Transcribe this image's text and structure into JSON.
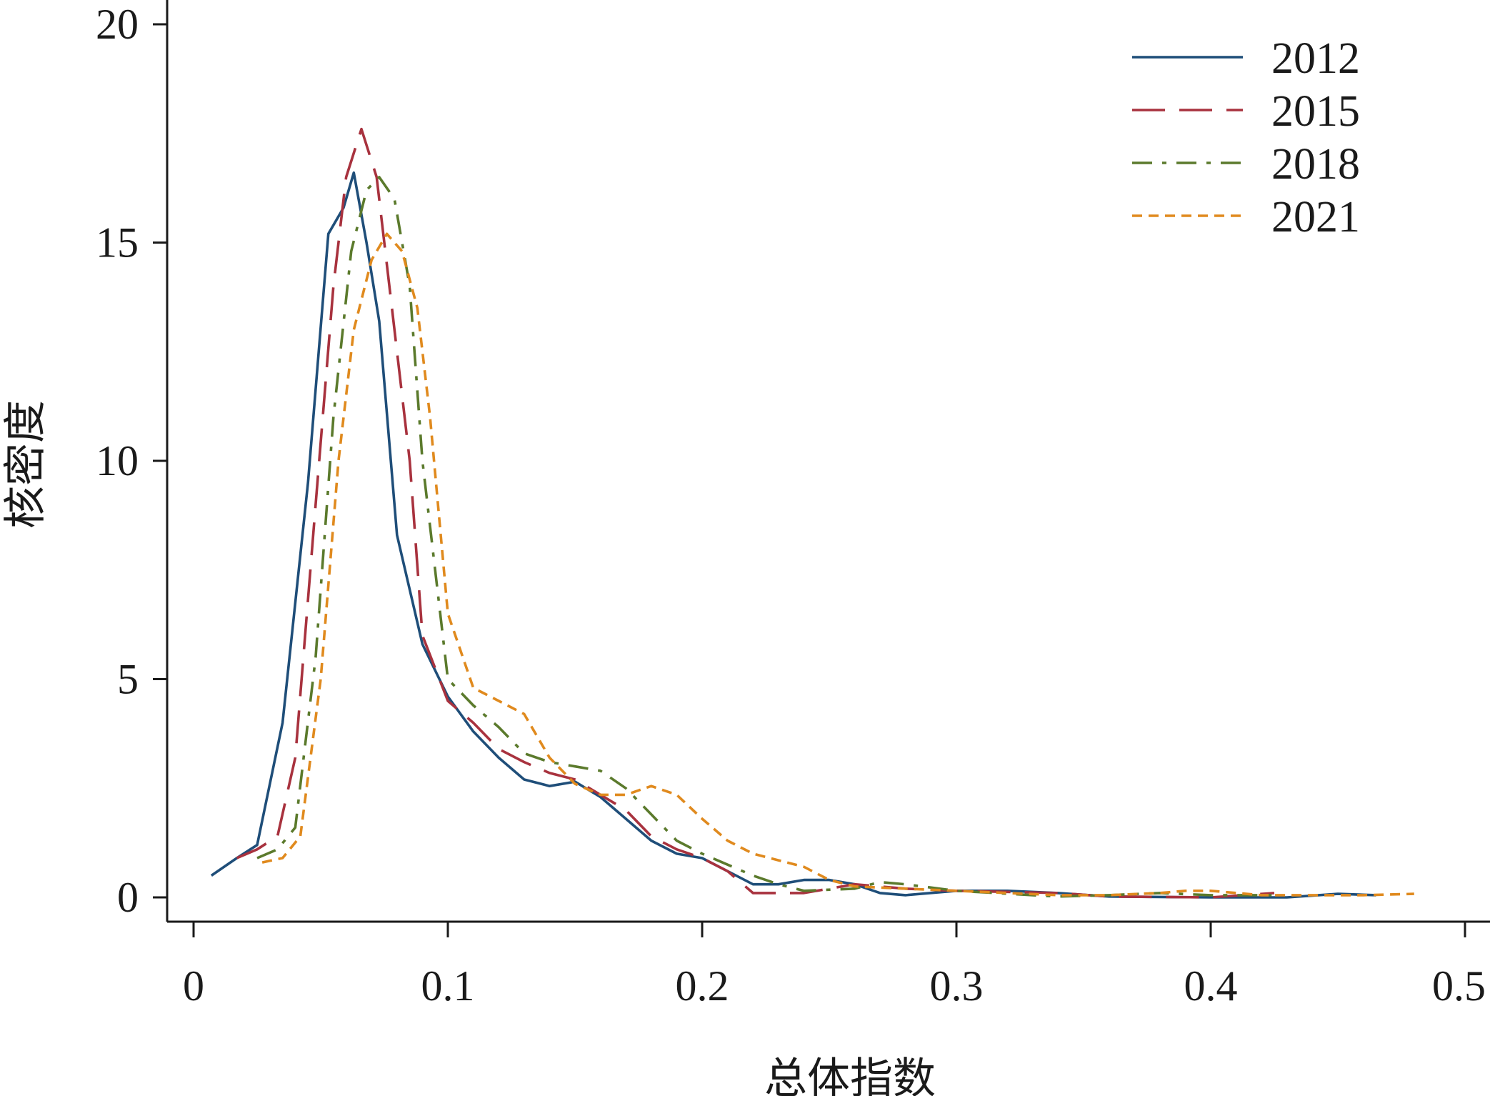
{
  "chart_data": {
    "type": "line",
    "title": "",
    "xlabel": "总体指数",
    "ylabel": "核密度",
    "xlim": [
      0,
      0.5
    ],
    "ylim": [
      0,
      20
    ],
    "x_ticks": [
      0,
      0.1,
      0.2,
      0.3,
      0.4,
      0.5
    ],
    "x_tick_labels": [
      "0",
      "0.1",
      "0.2",
      "0.3",
      "0.4",
      "0.5"
    ],
    "y_ticks": [
      0,
      5,
      10,
      15,
      20
    ],
    "y_tick_labels": [
      "0",
      "5",
      "10",
      "15",
      "20"
    ],
    "grid": false,
    "legend_position": "top-right",
    "series": [
      {
        "name": "2012",
        "color": "#1f4e79",
        "dash": "solid",
        "points": [
          [
            0.007,
            0.5
          ],
          [
            0.017,
            0.9
          ],
          [
            0.025,
            1.2
          ],
          [
            0.035,
            4.0
          ],
          [
            0.045,
            9.5
          ],
          [
            0.053,
            15.2
          ],
          [
            0.059,
            15.8
          ],
          [
            0.063,
            16.6
          ],
          [
            0.068,
            15.0
          ],
          [
            0.073,
            13.2
          ],
          [
            0.08,
            8.3
          ],
          [
            0.09,
            5.8
          ],
          [
            0.1,
            4.6
          ],
          [
            0.11,
            3.8
          ],
          [
            0.12,
            3.2
          ],
          [
            0.13,
            2.7
          ],
          [
            0.14,
            2.55
          ],
          [
            0.15,
            2.65
          ],
          [
            0.16,
            2.3
          ],
          [
            0.17,
            1.8
          ],
          [
            0.18,
            1.3
          ],
          [
            0.19,
            1.0
          ],
          [
            0.2,
            0.9
          ],
          [
            0.21,
            0.6
          ],
          [
            0.22,
            0.3
          ],
          [
            0.23,
            0.3
          ],
          [
            0.24,
            0.4
          ],
          [
            0.25,
            0.4
          ],
          [
            0.26,
            0.3
          ],
          [
            0.27,
            0.1
          ],
          [
            0.28,
            0.05
          ],
          [
            0.3,
            0.15
          ],
          [
            0.32,
            0.15
          ],
          [
            0.34,
            0.1
          ],
          [
            0.36,
            0.02
          ],
          [
            0.4,
            0.0
          ],
          [
            0.43,
            0.0
          ],
          [
            0.45,
            0.08
          ],
          [
            0.465,
            0.05
          ]
        ]
      },
      {
        "name": "2015",
        "color": "#a8323e",
        "dash": "long-dash",
        "points": [
          [
            0.017,
            0.9
          ],
          [
            0.025,
            1.1
          ],
          [
            0.033,
            1.4
          ],
          [
            0.04,
            3.2
          ],
          [
            0.048,
            9.0
          ],
          [
            0.055,
            14.0
          ],
          [
            0.06,
            16.5
          ],
          [
            0.066,
            17.6
          ],
          [
            0.072,
            16.5
          ],
          [
            0.078,
            13.5
          ],
          [
            0.085,
            10.0
          ],
          [
            0.09,
            6.0
          ],
          [
            0.1,
            4.5
          ],
          [
            0.11,
            4.0
          ],
          [
            0.12,
            3.4
          ],
          [
            0.13,
            3.1
          ],
          [
            0.14,
            2.85
          ],
          [
            0.15,
            2.7
          ],
          [
            0.16,
            2.35
          ],
          [
            0.17,
            2.0
          ],
          [
            0.18,
            1.4
          ],
          [
            0.19,
            1.1
          ],
          [
            0.2,
            0.9
          ],
          [
            0.21,
            0.6
          ],
          [
            0.22,
            0.1
          ],
          [
            0.23,
            0.1
          ],
          [
            0.24,
            0.1
          ],
          [
            0.25,
            0.2
          ],
          [
            0.26,
            0.3
          ],
          [
            0.28,
            0.2
          ],
          [
            0.3,
            0.15
          ],
          [
            0.34,
            0.1
          ],
          [
            0.36,
            0.02
          ],
          [
            0.4,
            0.0
          ],
          [
            0.425,
            0.1
          ]
        ]
      },
      {
        "name": "2018",
        "color": "#5b7a2c",
        "dash": "dash-dot",
        "points": [
          [
            0.025,
            0.9
          ],
          [
            0.033,
            1.1
          ],
          [
            0.04,
            1.6
          ],
          [
            0.048,
            5.5
          ],
          [
            0.055,
            11.0
          ],
          [
            0.062,
            14.8
          ],
          [
            0.068,
            16.2
          ],
          [
            0.073,
            16.5
          ],
          [
            0.079,
            16.0
          ],
          [
            0.085,
            14.0
          ],
          [
            0.09,
            10.0
          ],
          [
            0.095,
            7.5
          ],
          [
            0.1,
            5.0
          ],
          [
            0.11,
            4.4
          ],
          [
            0.12,
            3.9
          ],
          [
            0.13,
            3.3
          ],
          [
            0.14,
            3.1
          ],
          [
            0.15,
            3.0
          ],
          [
            0.16,
            2.9
          ],
          [
            0.17,
            2.5
          ],
          [
            0.18,
            1.9
          ],
          [
            0.19,
            1.3
          ],
          [
            0.2,
            1.0
          ],
          [
            0.21,
            0.75
          ],
          [
            0.22,
            0.5
          ],
          [
            0.23,
            0.3
          ],
          [
            0.24,
            0.15
          ],
          [
            0.26,
            0.2
          ],
          [
            0.27,
            0.35
          ],
          [
            0.28,
            0.3
          ],
          [
            0.3,
            0.15
          ],
          [
            0.33,
            0.05
          ],
          [
            0.34,
            0.02
          ],
          [
            0.36,
            0.05
          ],
          [
            0.38,
            0.1
          ],
          [
            0.4,
            0.05
          ],
          [
            0.425,
            0.05
          ]
        ]
      },
      {
        "name": "2021",
        "color": "#e08a1e",
        "dash": "short-dash",
        "points": [
          [
            0.027,
            0.8
          ],
          [
            0.035,
            0.9
          ],
          [
            0.042,
            1.4
          ],
          [
            0.05,
            5.0
          ],
          [
            0.057,
            10.0
          ],
          [
            0.063,
            13.0
          ],
          [
            0.07,
            14.6
          ],
          [
            0.076,
            15.2
          ],
          [
            0.082,
            14.8
          ],
          [
            0.088,
            13.5
          ],
          [
            0.093,
            11.0
          ],
          [
            0.1,
            6.5
          ],
          [
            0.11,
            4.8
          ],
          [
            0.12,
            4.5
          ],
          [
            0.13,
            4.2
          ],
          [
            0.14,
            3.2
          ],
          [
            0.15,
            2.6
          ],
          [
            0.16,
            2.35
          ],
          [
            0.17,
            2.35
          ],
          [
            0.18,
            2.55
          ],
          [
            0.19,
            2.35
          ],
          [
            0.2,
            1.8
          ],
          [
            0.21,
            1.3
          ],
          [
            0.22,
            1.0
          ],
          [
            0.23,
            0.85
          ],
          [
            0.24,
            0.7
          ],
          [
            0.25,
            0.4
          ],
          [
            0.26,
            0.25
          ],
          [
            0.28,
            0.2
          ],
          [
            0.3,
            0.15
          ],
          [
            0.34,
            0.05
          ],
          [
            0.36,
            0.05
          ],
          [
            0.38,
            0.1
          ],
          [
            0.39,
            0.15
          ],
          [
            0.4,
            0.15
          ],
          [
            0.42,
            0.05
          ],
          [
            0.46,
            0.05
          ],
          [
            0.48,
            0.08
          ]
        ]
      }
    ]
  }
}
